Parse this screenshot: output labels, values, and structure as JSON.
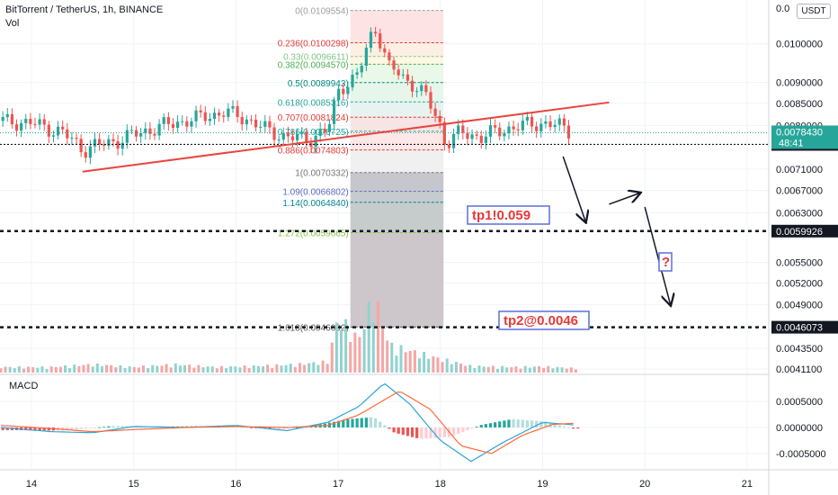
{
  "header": {
    "symbol_title": "BitTorrent / TetherUS, 1h, BINANCE",
    "volume_label": "Vol",
    "currency_button": "USDT"
  },
  "macd_label": "MACD",
  "colors": {
    "up": "#26a69a",
    "down": "#ef5350",
    "trendline": "#e8453c",
    "macd_line": "#2aa6d6",
    "signal_line": "#ff6a3d",
    "price_tag_bg": "#26a69a",
    "level_tag_bg": "#131722"
  },
  "annotations": {
    "tp1": "tp1!0.059",
    "tp2": "tp2@0.0046",
    "question": "?"
  },
  "chart_data": [
    {
      "type": "candlestick",
      "title": "BitTorrent / TetherUS, 1h, BINANCE",
      "x_ticks": [
        "14",
        "15",
        "16",
        "17",
        "18",
        "19",
        "20",
        "21"
      ],
      "y_ticks": [
        "0.0100000",
        "0.0090000",
        "0.0085000",
        "0.0080000",
        "0.0071000",
        "0.0067000",
        "0.0063000",
        "0.0055000",
        "0.0052000",
        "0.0049000",
        "0.0043500",
        "0.0041100"
      ],
      "y_scale": "log",
      "y_top_partial": "0.0",
      "current_price": {
        "value": "0.0078430",
        "countdown": "48:41"
      },
      "horizontal_levels": [
        "0.0075960",
        "0.0059926",
        "0.0046073"
      ],
      "fibonacci": [
        {
          "ratio": "0",
          "label": "0(0.0109554)"
        },
        {
          "ratio": "0.236",
          "label": "0.236(0.0100298)"
        },
        {
          "ratio": "0.33",
          "label": "0.33(0.0096611)"
        },
        {
          "ratio": "0.382",
          "label": "0.382(0.0094570)"
        },
        {
          "ratio": "0.5",
          "label": "0.5(0.0089943)"
        },
        {
          "ratio": "0.618",
          "label": "0.618(0.0085316)"
        },
        {
          "ratio": "0.707",
          "label": "0.707(0.0081824)"
        },
        {
          "ratio": "0.786",
          "label": "0.786(0.0078725)"
        },
        {
          "ratio": "0.886",
          "label": "0.886(0.0074803)"
        },
        {
          "ratio": "1",
          "label": "1(0.0070332)"
        },
        {
          "ratio": "1.09",
          "label": "1.09(0.0066802)"
        },
        {
          "ratio": "1.14",
          "label": "1.14(0.0064840)"
        },
        {
          "ratio": "1.272",
          "label": "1.272(0.0059665)"
        },
        {
          "ratio": "1.618",
          "label": "1.618(0.0046092)"
        }
      ],
      "trendline": {
        "start": {
          "day": 14.5,
          "price": 0.00705
        },
        "end": {
          "day": 19.65,
          "price": 0.00852
        }
      },
      "price_path": [
        [
          13.7,
          0.0081
        ],
        [
          14.0,
          0.00805
        ],
        [
          14.3,
          0.00785
        ],
        [
          14.5,
          0.0075
        ],
        [
          14.8,
          0.00765
        ],
        [
          15.0,
          0.0078
        ],
        [
          15.3,
          0.008
        ],
        [
          15.6,
          0.00815
        ],
        [
          15.9,
          0.0083
        ],
        [
          16.1,
          0.00815
        ],
        [
          16.3,
          0.0079
        ],
        [
          16.5,
          0.00775
        ],
        [
          16.7,
          0.0077
        ],
        [
          16.9,
          0.0079
        ],
        [
          17.0,
          0.0088
        ],
        [
          17.2,
          0.0092
        ],
        [
          17.35,
          0.0105
        ],
        [
          17.5,
          0.0094
        ],
        [
          17.7,
          0.009
        ],
        [
          17.85,
          0.0087
        ],
        [
          18.0,
          0.008
        ],
        [
          18.05,
          0.0076
        ],
        [
          18.2,
          0.00785
        ],
        [
          18.4,
          0.00775
        ],
        [
          18.6,
          0.0079
        ],
        [
          18.8,
          0.008
        ],
        [
          19.0,
          0.00805
        ],
        [
          19.15,
          0.008
        ],
        [
          19.3,
          0.00784
        ]
      ],
      "projection_path": [
        [
          19.2,
          0.00735
        ],
        [
          19.42,
          0.00615
        ],
        [
          19.65,
          0.00645
        ],
        [
          19.95,
          0.00665
        ],
        [
          20.0,
          0.0064
        ],
        [
          20.25,
          0.0049
        ]
      ],
      "volume": [
        [
          13.8,
          1
        ],
        [
          14.2,
          1
        ],
        [
          14.6,
          1.5
        ],
        [
          15.0,
          1
        ],
        [
          15.4,
          1.5
        ],
        [
          15.8,
          1
        ],
        [
          16.2,
          1.2
        ],
        [
          16.6,
          1.5
        ],
        [
          16.9,
          2
        ],
        [
          17.0,
          10
        ],
        [
          17.2,
          6
        ],
        [
          17.35,
          14
        ],
        [
          17.5,
          5
        ],
        [
          17.7,
          4
        ],
        [
          17.9,
          3
        ],
        [
          18.0,
          2.5
        ],
        [
          18.3,
          1.2
        ],
        [
          18.7,
          1
        ],
        [
          19.0,
          1.1
        ],
        [
          19.3,
          0.8
        ]
      ]
    },
    {
      "type": "macd",
      "title": "MACD",
      "y_ticks": [
        "0.0005000",
        "0.0000000",
        "-0.0005000"
      ],
      "macd": [
        [
          13.7,
          0.0
        ],
        [
          14.2,
          -8e-05
        ],
        [
          14.6,
          -0.0001
        ],
        [
          15.0,
          2e-05
        ],
        [
          15.5,
          0.0
        ],
        [
          16.0,
          4e-05
        ],
        [
          16.5,
          -6e-05
        ],
        [
          16.9,
          0.0001
        ],
        [
          17.2,
          0.0004
        ],
        [
          17.45,
          0.00085
        ],
        [
          17.7,
          0.00045
        ],
        [
          18.0,
          -0.00025
        ],
        [
          18.3,
          -0.00065
        ],
        [
          18.6,
          -0.0003
        ],
        [
          19.0,
          0.0001
        ],
        [
          19.3,
          5e-05
        ]
      ],
      "signal": [
        [
          13.7,
          4e-05
        ],
        [
          14.2,
          -2e-05
        ],
        [
          14.6,
          -8e-05
        ],
        [
          15.0,
          -4e-05
        ],
        [
          15.5,
          0.0
        ],
        [
          16.0,
          2e-05
        ],
        [
          16.5,
          0.0
        ],
        [
          16.9,
          4e-05
        ],
        [
          17.2,
          0.00024
        ],
        [
          17.6,
          0.0007
        ],
        [
          17.9,
          0.00035
        ],
        [
          18.2,
          -0.00035
        ],
        [
          18.5,
          -0.0005
        ],
        [
          18.8,
          -0.00015
        ],
        [
          19.1,
          6e-05
        ],
        [
          19.3,
          8e-05
        ]
      ],
      "histogram": [
        [
          13.8,
          -5e-05
        ],
        [
          14.3,
          -6e-05
        ],
        [
          14.8,
          3e-05
        ],
        [
          15.4,
          2e-05
        ],
        [
          15.9,
          3e-05
        ],
        [
          16.4,
          -4e-05
        ],
        [
          16.8,
          5e-05
        ],
        [
          17.1,
          0.00016
        ],
        [
          17.35,
          0.0002
        ],
        [
          17.55,
          -0.0001
        ],
        [
          17.8,
          -0.00022
        ],
        [
          18.1,
          -0.00018
        ],
        [
          18.4,
          5e-05
        ],
        [
          18.7,
          0.00016
        ],
        [
          19.0,
          0.00012
        ],
        [
          19.3,
          -2e-05
        ]
      ]
    }
  ]
}
